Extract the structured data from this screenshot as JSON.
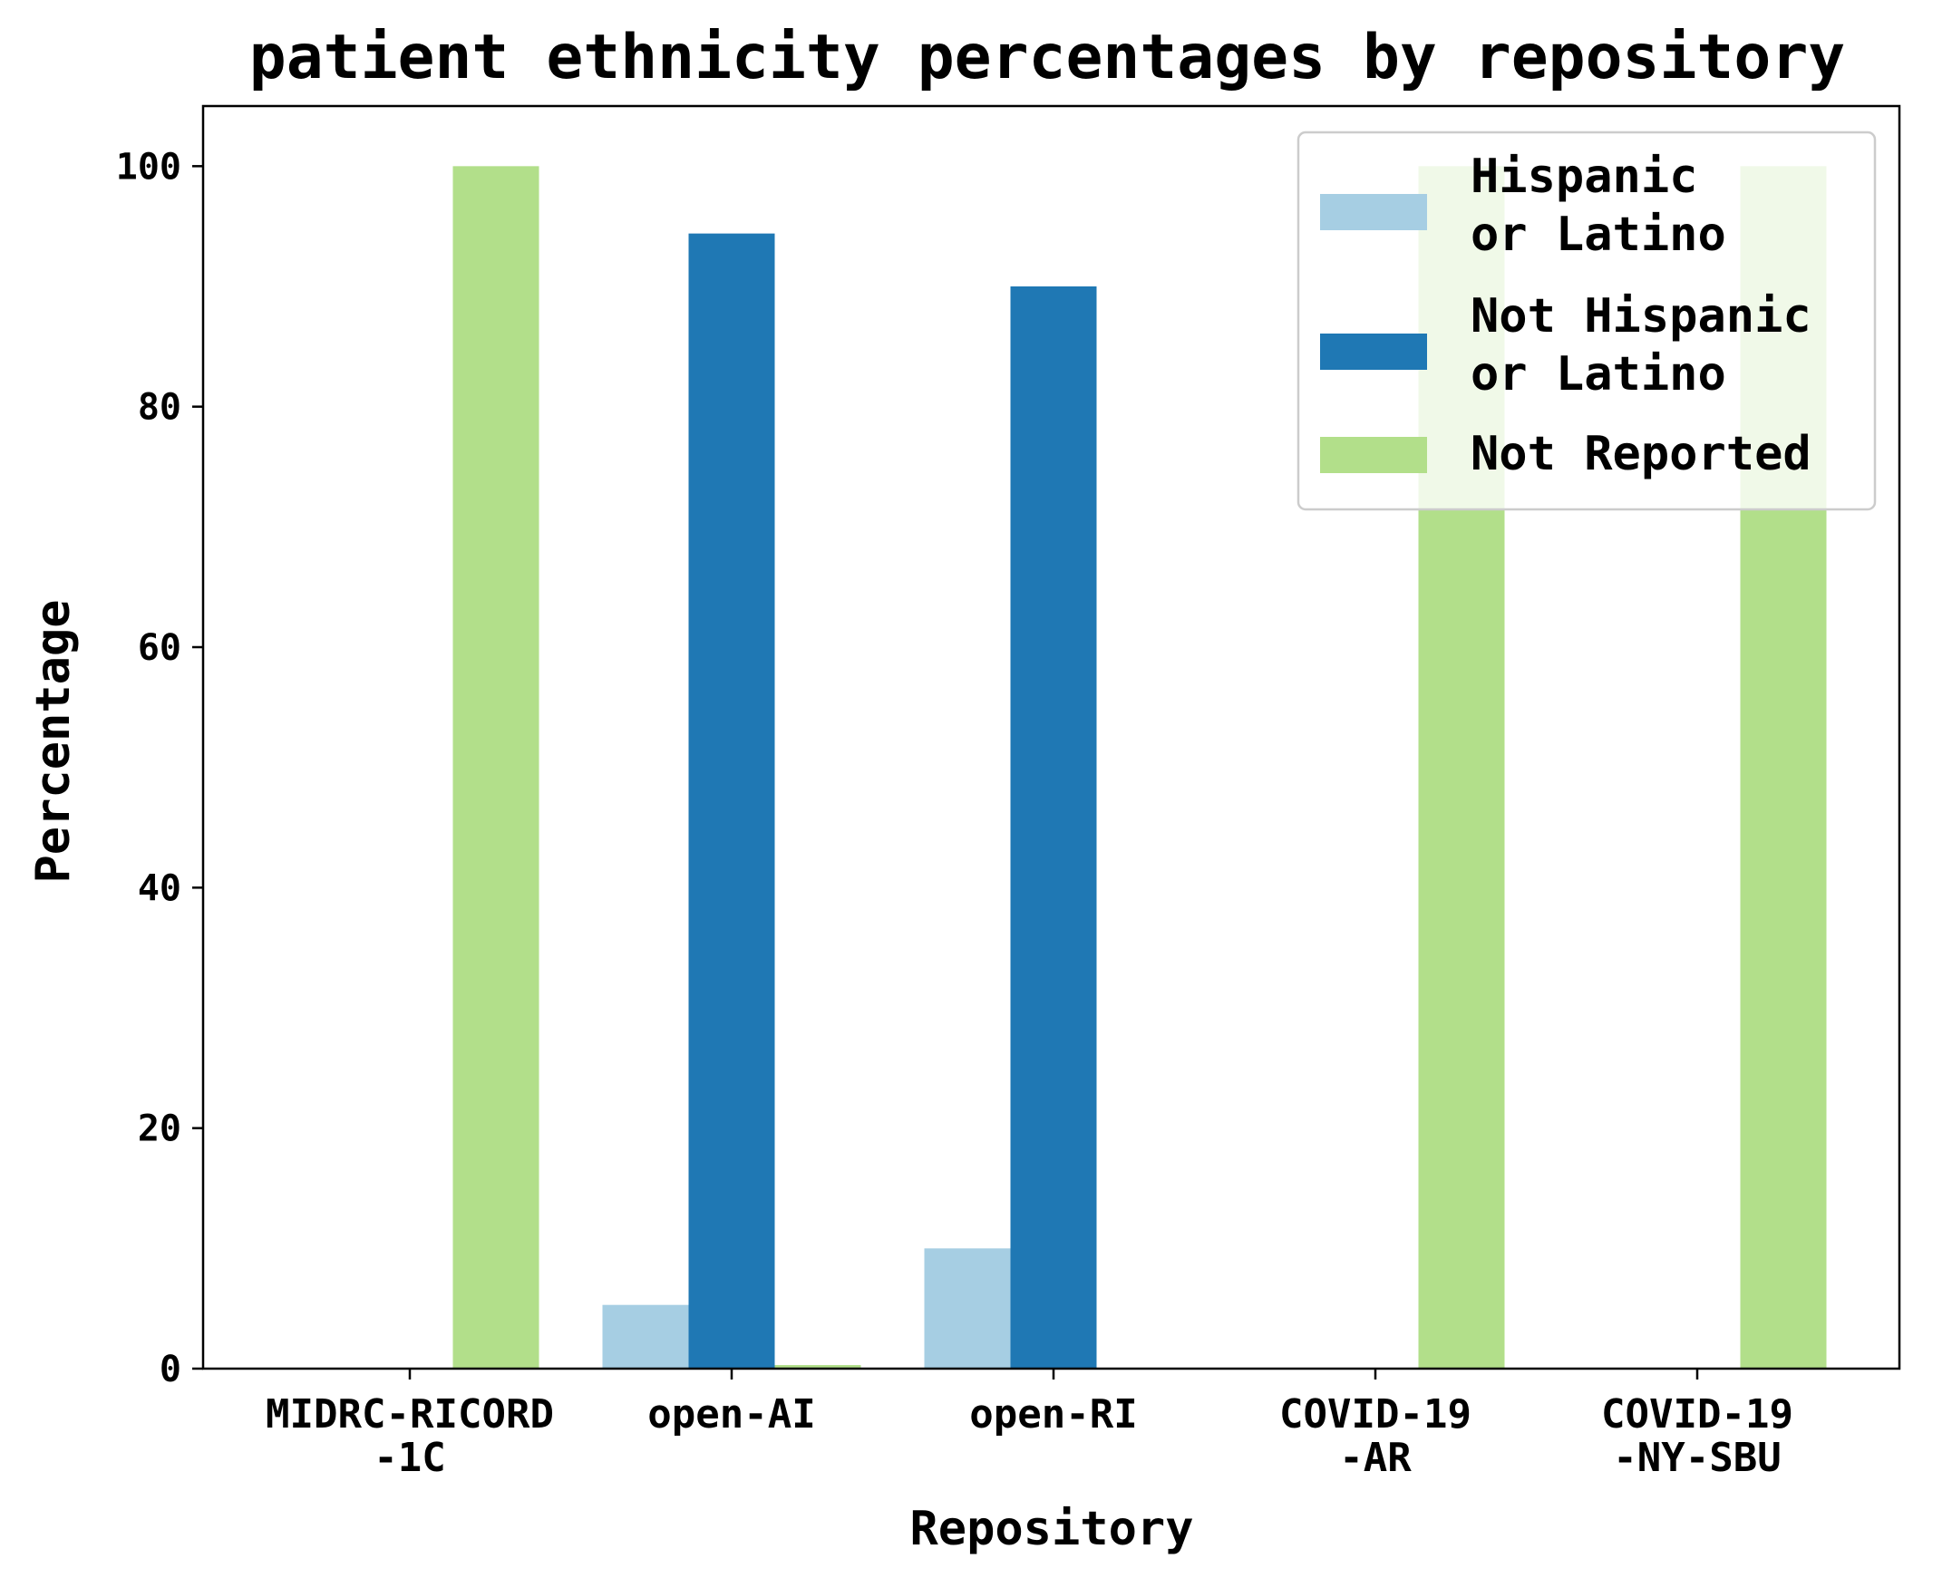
{
  "chart_data": {
    "type": "bar",
    "title": "patient ethnicity percentages by repository",
    "xlabel": "Repository",
    "ylabel": "Percentage",
    "ylim": [
      0,
      105
    ],
    "yticks": [
      0,
      20,
      40,
      60,
      80,
      100
    ],
    "grid": false,
    "legend_position": "top-right",
    "categories": [
      [
        "MIDRC-RICORD",
        "-1C"
      ],
      [
        "open-AI"
      ],
      [
        "open-RI"
      ],
      [
        "COVID-19",
        "-AR"
      ],
      [
        "COVID-19",
        "-NY-SBU"
      ]
    ],
    "series": [
      {
        "name": [
          "Hispanic",
          "or Latino"
        ],
        "color": "#a6cee3",
        "values": [
          0,
          5.3,
          10.0,
          0,
          0
        ]
      },
      {
        "name": [
          "Not Hispanic",
          "or Latino"
        ],
        "color": "#1f78b4",
        "values": [
          0,
          94.4,
          90.0,
          0,
          0
        ]
      },
      {
        "name": [
          "Not Reported"
        ],
        "color": "#b2df8a",
        "values": [
          100,
          0.3,
          0,
          100,
          100
        ]
      }
    ]
  }
}
